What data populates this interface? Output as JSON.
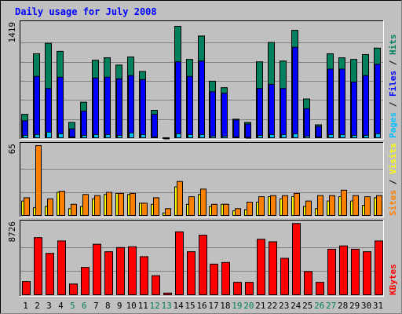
{
  "title": "Daily usage for July 2008",
  "colors": {
    "outer_bg": "#C0C0C0",
    "plot_bg": "#C0C0C0",
    "bar_outline": "#000000",
    "hits": "#00805C",
    "files": "#0000FF",
    "pages": "#00C0FF",
    "visits": "#FFFF00",
    "sites": "#FF8000",
    "kbytes": "#FF0000",
    "title": "#0000FF",
    "day_weekday": "#000000",
    "day_weekend": "#00805C"
  },
  "panels": {
    "top": {
      "max_label": "1419",
      "legend": [
        "Pages",
        "/",
        "Files",
        "/",
        "Hits"
      ]
    },
    "mid": {
      "max_label": "65",
      "legend": [
        "Sites",
        "/",
        "Visits"
      ]
    },
    "bot": {
      "max_label": "8726",
      "legend": [
        "KBytes"
      ]
    }
  },
  "chart_data": {
    "type": "bar",
    "title": "Daily usage for July 2008",
    "x": [
      "1",
      "2",
      "3",
      "4",
      "5",
      "6",
      "7",
      "8",
      "9",
      "10",
      "11",
      "12",
      "13",
      "14",
      "15",
      "16",
      "17",
      "18",
      "19",
      "20",
      "21",
      "22",
      "23",
      "24",
      "25",
      "26",
      "27",
      "28",
      "29",
      "30",
      "31"
    ],
    "weekend_days": [
      "5",
      "6",
      "12",
      "13",
      "19",
      "20",
      "26",
      "27"
    ],
    "panels": [
      {
        "name": "top",
        "ylim": [
          0,
          1419
        ],
        "series": [
          {
            "name": "Hits",
            "values": [
              300,
              1050,
              1180,
              1080,
              200,
              450,
              970,
              1000,
              910,
              1010,
              830,
              350,
              10,
              1390,
              980,
              1270,
              710,
              630,
              240,
              200,
              950,
              1190,
              960,
              1340,
              490,
              170,
              1050,
              1000,
              980,
              1040,
              1120
            ]
          },
          {
            "name": "Files",
            "values": [
              220,
              770,
              620,
              760,
              120,
              340,
              750,
              760,
              740,
              780,
              730,
              300,
              8,
              950,
              770,
              960,
              580,
              560,
              230,
              180,
              620,
              670,
              620,
              1130,
              370,
              150,
              860,
              860,
              700,
              780,
              920
            ]
          },
          {
            "name": "Pages",
            "values": [
              40,
              50,
              80,
              60,
              20,
              40,
              50,
              50,
              40,
              70,
              50,
              20,
              5,
              60,
              50,
              50,
              30,
              30,
              20,
              15,
              40,
              50,
              50,
              60,
              30,
              20,
              50,
              50,
              40,
              40,
              60
            ]
          }
        ]
      },
      {
        "name": "mid",
        "ylim": [
          0,
          65
        ],
        "series": [
          {
            "name": "Visits",
            "values": [
              14,
              8,
              9,
              22,
              7,
              9,
              16,
              20,
              21,
              20,
              12,
              11,
              3,
              27,
              11,
              20,
              9,
              11,
              5,
              6,
              13,
              18,
              16,
              18,
              9,
              7,
              14,
              18,
              14,
              10,
              17
            ]
          },
          {
            "name": "Sites",
            "values": [
              17,
              65,
              16,
              23,
              11,
              20,
              19,
              22,
              21,
              21,
              12,
              17,
              7,
              32,
              18,
              25,
              11,
              11,
              7,
              13,
              18,
              19,
              19,
              21,
              14,
              19,
              19,
              24,
              19,
              18,
              19
            ]
          }
        ]
      },
      {
        "name": "bot",
        "ylim": [
          0,
          8726
        ],
        "series": [
          {
            "name": "KBytes",
            "values": [
              1700,
              7000,
              5100,
              6600,
              1400,
              3400,
              6200,
              5300,
              5800,
              5900,
              4700,
              2400,
              300,
              7700,
              5300,
              7300,
              3800,
              4000,
              1600,
              1600,
              6800,
              6500,
              4500,
              8700,
              2900,
              1600,
              5600,
              6000,
              5600,
              5300,
              6600
            ]
          }
        ]
      }
    ]
  }
}
